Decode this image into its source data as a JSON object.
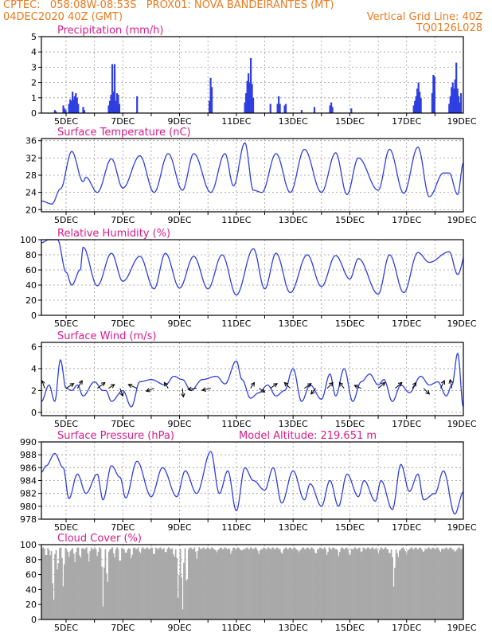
{
  "header": {
    "line1": "CPTEC:   058:08W-08:53S   PROX01: NOVA BANDEIRANTES (MT)",
    "line2_left": "04DEC2020 40Z (GMT)",
    "line2_right": "Vertical Grid Line: 40Z",
    "line3_right": "TQ0126L028"
  },
  "colors": {
    "header": "#e87a1e",
    "title": "#d81b8a",
    "series": "#2f3fe0",
    "cloud": "#a9a9a9",
    "grid": "#9a9a9a"
  },
  "date_ticks": [
    "5DEC",
    "7DEC",
    "9DEC",
    "11DEC",
    "13DEC",
    "15DEC",
    "17DEC",
    "19DEC"
  ],
  "model_altitude": "Model Altitude: 219.651 m",
  "chart_data": [
    {
      "type": "bar",
      "title": "Precipitation (mm/h)",
      "ylim": [
        0,
        5
      ],
      "yticks": [
        0,
        1,
        2,
        3,
        4,
        5
      ],
      "x_start_day": 4.13,
      "x_end_day": 19.0,
      "step_days": 0.0417,
      "events": [
        {
          "day": 4.6,
          "values": [
            0.2,
            0.1
          ]
        },
        {
          "day": 4.9,
          "values": [
            0.5,
            0.3,
            0.2
          ]
        },
        {
          "day": 5.1,
          "values": [
            0.6,
            0.9,
            0.8,
            1.4,
            0.9
          ]
        },
        {
          "day": 5.3,
          "values": [
            1.1,
            1.3,
            1.0,
            0.6
          ]
        },
        {
          "day": 5.6,
          "values": [
            0.4,
            0.2
          ]
        },
        {
          "day": 6.5,
          "values": [
            0.5,
            0.8,
            1.2,
            3.2,
            1.4,
            3.2,
            0.8,
            1.3,
            1.2,
            0.6
          ]
        },
        {
          "day": 7.5,
          "values": [
            1.1
          ]
        },
        {
          "day": 10.05,
          "values": [
            0.8,
            2.3,
            1.7
          ]
        },
        {
          "day": 11.3,
          "values": [
            0.7,
            1.3,
            2.1,
            2.6,
            2.0,
            3.6,
            1.9,
            1.0
          ]
        },
        {
          "day": 12.2,
          "values": [
            0.6
          ]
        },
        {
          "day": 12.45,
          "values": [
            0.6,
            1.1,
            0.6
          ]
        },
        {
          "day": 12.7,
          "values": [
            0.5,
            0.6
          ]
        },
        {
          "day": 13.3,
          "values": [
            0.2
          ]
        },
        {
          "day": 13.75,
          "values": [
            0.4
          ]
        },
        {
          "day": 14.3,
          "values": [
            0.5,
            0.7,
            0.4
          ]
        },
        {
          "day": 15.05,
          "values": [
            0.3
          ]
        },
        {
          "day": 17.25,
          "values": [
            0.5,
            0.8,
            1.1,
            1.6,
            2.0,
            1.4,
            1.0
          ]
        },
        {
          "day": 17.9,
          "values": [
            1.3,
            2.5,
            2.4
          ]
        },
        {
          "day": 18.5,
          "values": [
            0.6,
            1.1,
            1.7,
            2.0,
            1.6,
            2.2,
            3.3,
            1.6,
            1.1,
            0.7,
            1.3
          ]
        }
      ]
    },
    {
      "type": "line",
      "title": "Surface Temperature (nC)",
      "ylim": [
        19.5,
        36.5
      ],
      "yticks": [
        20,
        24,
        28,
        32,
        36
      ],
      "x_start_day": 4.13,
      "x_end_day": 19.0,
      "extrema": [
        [
          4.13,
          22.0
        ],
        [
          4.5,
          21.3
        ],
        [
          4.8,
          24.8
        ],
        [
          5.2,
          33.5
        ],
        [
          5.6,
          26.5
        ],
        [
          5.7,
          27.5
        ],
        [
          6.1,
          24.0
        ],
        [
          6.6,
          31.8
        ],
        [
          7.0,
          25.0
        ],
        [
          7.6,
          32.5
        ],
        [
          8.1,
          24.0
        ],
        [
          8.6,
          33.0
        ],
        [
          9.1,
          24.5
        ],
        [
          9.5,
          33.0
        ],
        [
          10.1,
          24.0
        ],
        [
          10.6,
          33.0
        ],
        [
          10.9,
          25.5
        ],
        [
          11.3,
          35.5
        ],
        [
          11.6,
          24.5
        ],
        [
          11.9,
          24.0
        ],
        [
          12.4,
          33.0
        ],
        [
          12.9,
          24.0
        ],
        [
          13.4,
          34.0
        ],
        [
          14.0,
          24.0
        ],
        [
          14.5,
          33.2
        ],
        [
          14.9,
          23.5
        ],
        [
          15.3,
          32.0
        ],
        [
          16.0,
          24.5
        ],
        [
          16.4,
          34.0
        ],
        [
          16.9,
          23.8
        ],
        [
          17.4,
          34.5
        ],
        [
          17.8,
          23.0
        ],
        [
          18.3,
          28.5
        ],
        [
          18.5,
          28.5
        ],
        [
          18.8,
          23.5
        ],
        [
          19.0,
          30.8
        ],
        [
          19.1,
          29.5
        ]
      ]
    },
    {
      "type": "line",
      "title": "Relative Humidity (%)",
      "ylim": [
        0,
        100
      ],
      "yticks": [
        0,
        20,
        40,
        60,
        80,
        100
      ],
      "x_start_day": 4.13,
      "x_end_day": 19.0,
      "extrema": [
        [
          4.13,
          96
        ],
        [
          4.4,
          100
        ],
        [
          4.7,
          100
        ],
        [
          5.0,
          57
        ],
        [
          5.2,
          40
        ],
        [
          5.5,
          60
        ],
        [
          5.6,
          90
        ],
        [
          6.1,
          39
        ],
        [
          6.6,
          82
        ],
        [
          7.0,
          45
        ],
        [
          7.6,
          78
        ],
        [
          8.1,
          35
        ],
        [
          8.5,
          82
        ],
        [
          9.0,
          36
        ],
        [
          9.5,
          78
        ],
        [
          10.0,
          35
        ],
        [
          10.5,
          80
        ],
        [
          11.0,
          27
        ],
        [
          11.6,
          88
        ],
        [
          12.0,
          35
        ],
        [
          12.4,
          82
        ],
        [
          12.9,
          30
        ],
        [
          13.5,
          80
        ],
        [
          14.0,
          38
        ],
        [
          14.5,
          79
        ],
        [
          15.0,
          48
        ],
        [
          15.3,
          75
        ],
        [
          16.0,
          28
        ],
        [
          16.4,
          80
        ],
        [
          16.9,
          30
        ],
        [
          17.4,
          83
        ],
        [
          17.8,
          70
        ],
        [
          18.5,
          84
        ],
        [
          18.8,
          54
        ],
        [
          19.1,
          83
        ]
      ]
    },
    {
      "type": "line",
      "title": "Surface Wind (m/s)",
      "ylim": [
        -0.3,
        6.4
      ],
      "yticks": [
        0,
        2,
        4,
        6
      ],
      "x_start_day": 4.13,
      "x_end_day": 19.0,
      "extrema": [
        [
          4.13,
          1.0
        ],
        [
          4.4,
          2.5
        ],
        [
          4.6,
          1.0
        ],
        [
          4.8,
          4.8
        ],
        [
          5.0,
          2.2
        ],
        [
          5.2,
          2.0
        ],
        [
          5.4,
          2.5
        ],
        [
          5.6,
          1.5
        ],
        [
          6.0,
          2.8
        ],
        [
          6.3,
          2.0
        ],
        [
          6.4,
          2.0
        ],
        [
          6.6,
          1.0
        ],
        [
          7.0,
          2.0
        ],
        [
          7.3,
          0.5
        ],
        [
          7.6,
          2.8
        ],
        [
          8.0,
          3.0
        ],
        [
          8.5,
          2.5
        ],
        [
          8.8,
          3.3
        ],
        [
          9.1,
          3.0
        ],
        [
          9.4,
          2.0
        ],
        [
          9.8,
          3.0
        ],
        [
          10.3,
          3.3
        ],
        [
          10.6,
          2.6
        ],
        [
          11.0,
          4.7
        ],
        [
          11.2,
          3.0
        ],
        [
          11.5,
          1.3
        ],
        [
          11.8,
          1.8
        ],
        [
          12.1,
          2.5
        ],
        [
          12.4,
          1.5
        ],
        [
          12.7,
          2.0
        ],
        [
          13.0,
          4.0
        ],
        [
          13.3,
          1.0
        ],
        [
          13.6,
          2.5
        ],
        [
          14.0,
          1.2
        ],
        [
          14.3,
          3.5
        ],
        [
          14.5,
          1.5
        ],
        [
          14.8,
          4.0
        ],
        [
          15.1,
          1.0
        ],
        [
          15.4,
          2.8
        ],
        [
          15.7,
          3.5
        ],
        [
          16.0,
          2.5
        ],
        [
          16.2,
          3.0
        ],
        [
          16.5,
          1.0
        ],
        [
          16.8,
          2.5
        ],
        [
          17.1,
          1.8
        ],
        [
          17.5,
          3.3
        ],
        [
          17.8,
          2.5
        ],
        [
          18.1,
          2.8
        ],
        [
          18.4,
          1.5
        ],
        [
          18.6,
          2.5
        ],
        [
          18.8,
          5.4
        ],
        [
          19.0,
          0.5
        ]
      ],
      "vectors": [
        {
          "day": 4.25,
          "u": -0.3,
          "v": 0.8
        },
        {
          "day": 5.0,
          "u": 0.8,
          "v": 0.5
        },
        {
          "day": 5.4,
          "u": 0.5,
          "v": 0.8
        },
        {
          "day": 6.1,
          "u": 0.8,
          "v": 0.6
        },
        {
          "day": 6.5,
          "u": 0.6,
          "v": 0.4
        },
        {
          "day": 6.9,
          "u": 0.3,
          "v": -0.8
        },
        {
          "day": 7.5,
          "u": -0.9,
          "v": 0.4
        },
        {
          "day": 8.1,
          "u": -0.8,
          "v": -0.3
        },
        {
          "day": 8.6,
          "u": -0.4,
          "v": 0.6
        },
        {
          "day": 9.1,
          "u": 0.1,
          "v": -0.9
        },
        {
          "day": 9.6,
          "u": -0.9,
          "v": -0.1
        },
        {
          "day": 10.1,
          "u": -0.9,
          "v": -0.2
        },
        {
          "day": 11.5,
          "u": 0.4,
          "v": 0.6
        },
        {
          "day": 11.8,
          "u": 0.6,
          "v": -0.4
        },
        {
          "day": 12.2,
          "u": 0.7,
          "v": 0.5
        },
        {
          "day": 12.9,
          "u": -0.6,
          "v": 0.6
        },
        {
          "day": 13.4,
          "u": 0.7,
          "v": 0.5
        },
        {
          "day": 13.8,
          "u": -0.5,
          "v": -0.6
        },
        {
          "day": 14.2,
          "u": 0.6,
          "v": 0.6
        },
        {
          "day": 14.8,
          "u": -0.5,
          "v": 0.6
        },
        {
          "day": 15.4,
          "u": -0.7,
          "v": 0.3
        },
        {
          "day": 16.0,
          "u": 0.7,
          "v": 0.6
        },
        {
          "day": 16.6,
          "u": 0.7,
          "v": 0.6
        },
        {
          "day": 17.2,
          "u": 0.4,
          "v": 0.6
        },
        {
          "day": 17.6,
          "u": 0.6,
          "v": -0.6
        },
        {
          "day": 18.2,
          "u": 0.4,
          "v": 0.8
        },
        {
          "day": 18.6,
          "u": -0.2,
          "v": 0.9
        }
      ]
    },
    {
      "type": "line",
      "title": "Surface Pressure (hPa)",
      "ylim": [
        978,
        990
      ],
      "yticks": [
        978,
        980,
        982,
        984,
        986,
        988,
        990
      ],
      "x_start_day": 4.13,
      "x_end_day": 19.0,
      "extrema": [
        [
          4.13,
          985.3
        ],
        [
          4.3,
          986.3
        ],
        [
          4.6,
          988.2
        ],
        [
          4.9,
          986.0
        ],
        [
          5.1,
          981.2
        ],
        [
          5.4,
          985.0
        ],
        [
          5.7,
          982.0
        ],
        [
          6.1,
          985.0
        ],
        [
          6.3,
          981.0
        ],
        [
          6.6,
          986.3
        ],
        [
          6.9,
          984.5
        ],
        [
          7.1,
          981.3
        ],
        [
          7.5,
          987.0
        ],
        [
          8.0,
          981.5
        ],
        [
          8.4,
          986.0
        ],
        [
          8.9,
          981.5
        ],
        [
          9.2,
          985.5
        ],
        [
          9.6,
          982.0
        ],
        [
          10.1,
          988.5
        ],
        [
          10.4,
          982.0
        ],
        [
          10.7,
          985.5
        ],
        [
          11.0,
          979.3
        ],
        [
          11.3,
          986.0
        ],
        [
          11.6,
          984.0
        ],
        [
          12.0,
          982.5
        ],
        [
          12.3,
          986.0
        ],
        [
          12.6,
          980.5
        ],
        [
          13.0,
          985.5
        ],
        [
          13.4,
          981.0
        ],
        [
          13.6,
          983.5
        ],
        [
          14.0,
          980.0
        ],
        [
          14.3,
          984.0
        ],
        [
          14.6,
          980.0
        ],
        [
          14.9,
          985.0
        ],
        [
          15.3,
          981.5
        ],
        [
          15.5,
          984.0
        ],
        [
          15.9,
          980.8
        ],
        [
          16.1,
          984.0
        ],
        [
          16.5,
          979.5
        ],
        [
          16.8,
          986.5
        ],
        [
          17.1,
          982.3
        ],
        [
          17.4,
          985.0
        ],
        [
          17.6,
          981.0
        ],
        [
          18.0,
          982.0
        ],
        [
          18.3,
          985.5
        ],
        [
          18.7,
          978.8
        ],
        [
          19.0,
          982.2
        ]
      ]
    },
    {
      "type": "area",
      "title": "Cloud Cover (%)",
      "ylim": [
        0,
        100
      ],
      "yticks": [
        0,
        20,
        40,
        60,
        80,
        100
      ],
      "x_start_day": 4.13,
      "x_end_day": 19.0,
      "base_level": 95,
      "dips": [
        [
          4.3,
          82
        ],
        [
          4.45,
          85
        ],
        [
          4.55,
          8
        ],
        [
          4.7,
          60
        ],
        [
          4.9,
          40
        ],
        [
          5.1,
          82
        ],
        [
          5.3,
          75
        ],
        [
          5.5,
          80
        ],
        [
          5.8,
          78
        ],
        [
          6.1,
          85
        ],
        [
          6.3,
          15
        ],
        [
          6.45,
          35
        ],
        [
          6.7,
          82
        ],
        [
          6.9,
          70
        ],
        [
          7.1,
          85
        ],
        [
          7.3,
          80
        ],
        [
          7.6,
          88
        ],
        [
          8.1,
          85
        ],
        [
          8.5,
          88
        ],
        [
          8.8,
          80
        ],
        [
          8.95,
          18
        ],
        [
          9.1,
          2
        ],
        [
          9.25,
          30
        ],
        [
          9.6,
          82
        ],
        [
          10.3,
          88
        ],
        [
          10.8,
          88
        ],
        [
          11.2,
          90
        ],
        [
          11.8,
          86
        ],
        [
          12.6,
          84
        ],
        [
          13.2,
          88
        ],
        [
          13.8,
          84
        ],
        [
          14.2,
          86
        ],
        [
          14.6,
          84
        ],
        [
          15.0,
          82
        ],
        [
          15.4,
          90
        ],
        [
          16.0,
          88
        ],
        [
          16.4,
          84
        ],
        [
          16.55,
          35
        ],
        [
          16.7,
          80
        ],
        [
          17.0,
          85
        ],
        [
          17.6,
          88
        ],
        [
          18.2,
          90
        ],
        [
          18.7,
          88
        ]
      ]
    }
  ]
}
